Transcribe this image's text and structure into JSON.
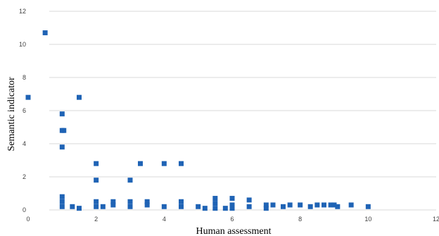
{
  "chart_data": {
    "type": "scatter",
    "xlabel": "Human assessment",
    "ylabel": "Semantic indicator",
    "xlim": [
      0,
      12
    ],
    "ylim": [
      0,
      12
    ],
    "xticks": [
      "0",
      "2",
      "4",
      "6",
      "8",
      "10",
      "12"
    ],
    "yticks": [
      "0",
      "2",
      "4",
      "6",
      "8",
      "10",
      "12"
    ],
    "grid": "horizontal",
    "marker_color": "#1f63b5",
    "series": [
      {
        "points": [
          [
            0,
            6.8
          ],
          [
            0.5,
            10.7
          ],
          [
            1,
            5.8
          ],
          [
            1,
            4.8
          ],
          [
            1.05,
            4.8
          ],
          [
            1,
            3.8
          ],
          [
            1.5,
            6.8
          ],
          [
            1,
            0.8
          ],
          [
            1,
            0.5
          ],
          [
            1,
            0.2
          ],
          [
            1.3,
            0.2
          ],
          [
            1.5,
            0.1
          ],
          [
            2,
            2.8
          ],
          [
            2,
            1.8
          ],
          [
            2,
            0.5
          ],
          [
            2,
            0.2
          ],
          [
            2.2,
            0.2
          ],
          [
            2.5,
            0.5
          ],
          [
            2.5,
            0.3
          ],
          [
            3,
            1.8
          ],
          [
            3,
            0.5
          ],
          [
            3,
            0.2
          ],
          [
            3.3,
            2.8
          ],
          [
            3.5,
            0.5
          ],
          [
            3.5,
            0.3
          ],
          [
            4,
            2.8
          ],
          [
            4,
            0.2
          ],
          [
            4.5,
            2.8
          ],
          [
            4.5,
            0.5
          ],
          [
            4.5,
            0.2
          ],
          [
            5,
            0.2
          ],
          [
            5.2,
            0.1
          ],
          [
            5.5,
            0.7
          ],
          [
            5.5,
            0.4
          ],
          [
            5.5,
            0.1
          ],
          [
            5.8,
            0.1
          ],
          [
            6,
            0.7
          ],
          [
            6,
            0.3
          ],
          [
            6,
            0.1
          ],
          [
            6.5,
            0.6
          ],
          [
            6.5,
            0.2
          ],
          [
            7,
            0.3
          ],
          [
            7,
            0.1
          ],
          [
            7.2,
            0.3
          ],
          [
            7.5,
            0.2
          ],
          [
            7.7,
            0.3
          ],
          [
            8,
            0.3
          ],
          [
            8.3,
            0.2
          ],
          [
            8.5,
            0.3
          ],
          [
            8.7,
            0.3
          ],
          [
            8.9,
            0.3
          ],
          [
            9,
            0.3
          ],
          [
            9.1,
            0.2
          ],
          [
            9.5,
            0.3
          ],
          [
            10,
            0.2
          ]
        ]
      }
    ]
  }
}
